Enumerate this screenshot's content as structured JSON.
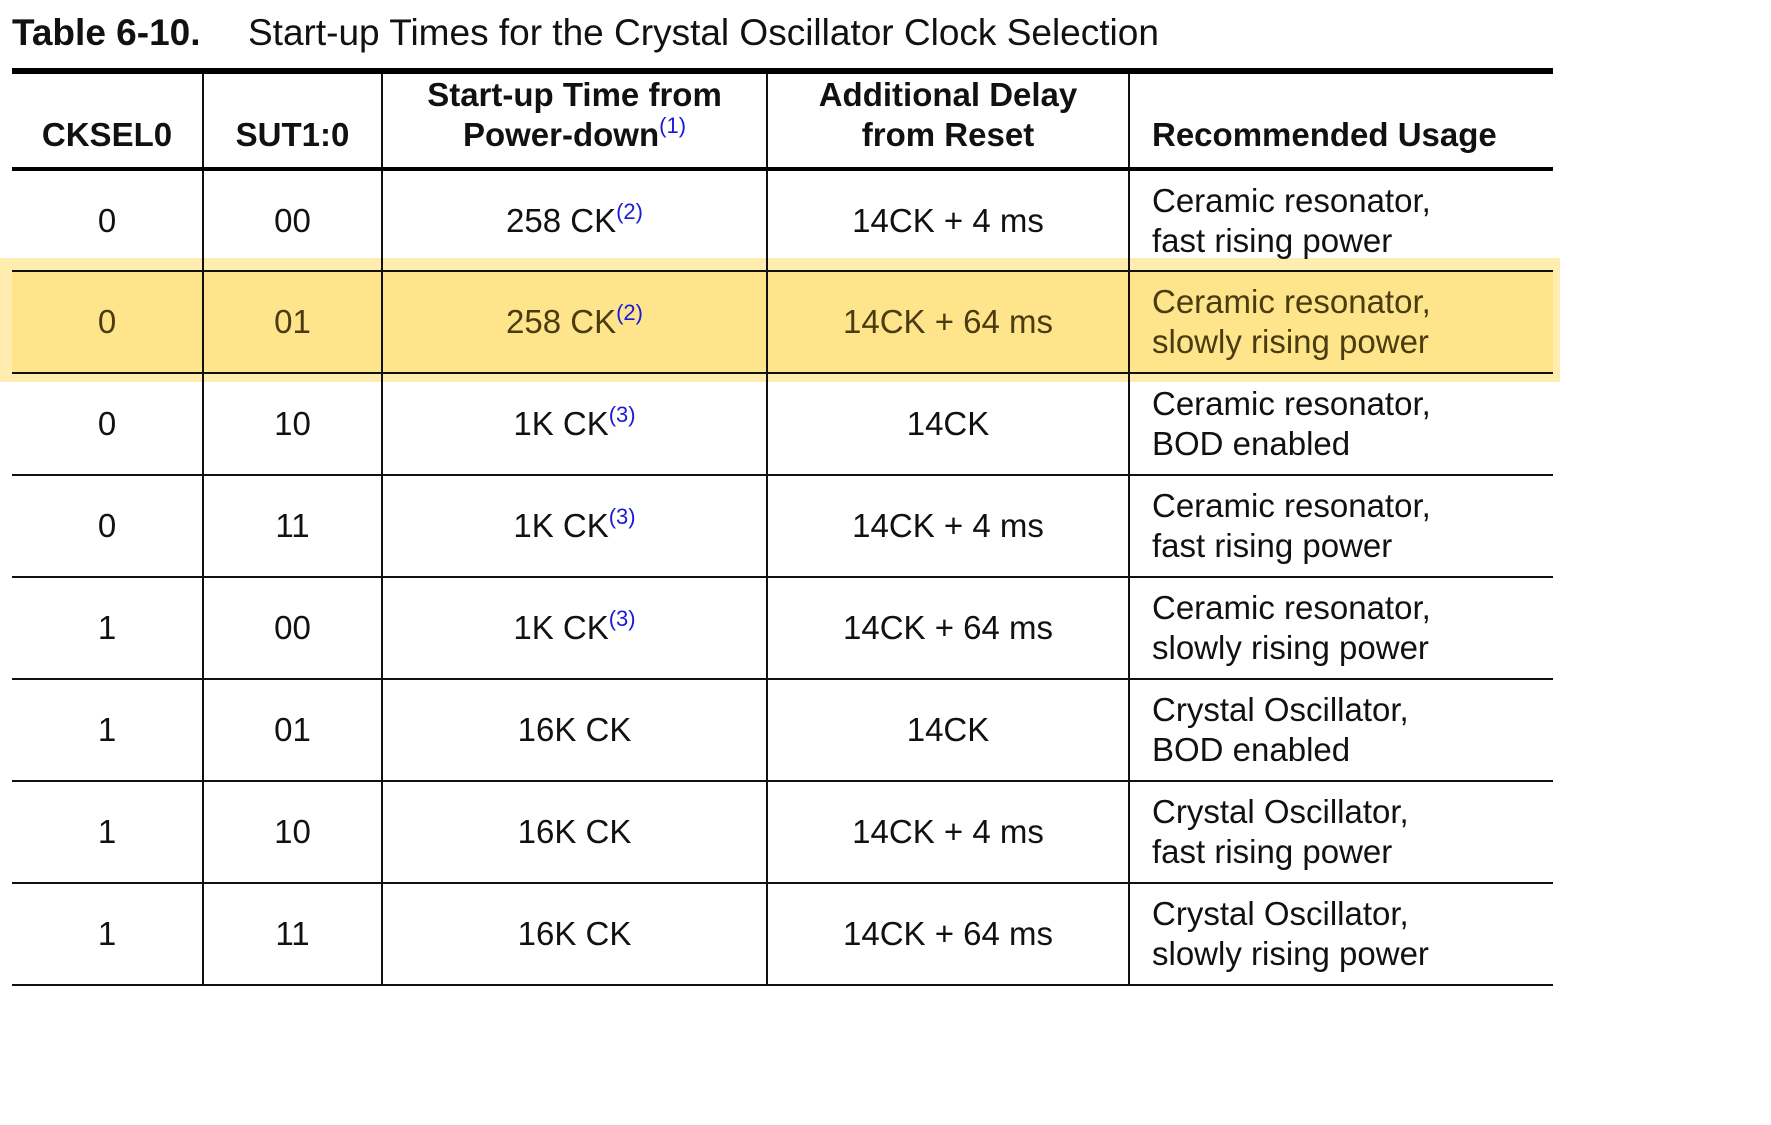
{
  "caption": {
    "number": "Table 6-10.",
    "title": "Start-up Times for the Crystal Oscillator Clock Selection"
  },
  "columns": {
    "cksel0": "CKSEL0",
    "sut": "SUT1:0",
    "startup_line1": "Start-up Time from",
    "startup_line2": "Power-down",
    "startup_note": "(1)",
    "delay_line1": "Additional Delay",
    "delay_line2": "from Reset",
    "usage": "Recommended Usage"
  },
  "rows": [
    {
      "cksel0": "0",
      "sut": "00",
      "startup": "258 CK",
      "note": "(2)",
      "delay": "14CK + 4 ms",
      "usage1": "Ceramic resonator,",
      "usage2": "fast rising power"
    },
    {
      "cksel0": "0",
      "sut": "01",
      "startup": "258 CK",
      "note": "(2)",
      "delay": "14CK + 64 ms",
      "usage1": "Ceramic resonator,",
      "usage2": "slowly rising power"
    },
    {
      "cksel0": "0",
      "sut": "10",
      "startup": "1K CK",
      "note": "(3)",
      "delay": "14CK",
      "usage1": "Ceramic resonator,",
      "usage2": "BOD enabled"
    },
    {
      "cksel0": "0",
      "sut": "11",
      "startup": "1K CK",
      "note": "(3)",
      "delay": "14CK + 4 ms",
      "usage1": "Ceramic resonator,",
      "usage2": "fast rising power"
    },
    {
      "cksel0": "1",
      "sut": "00",
      "startup": "1K CK",
      "note": "(3)",
      "delay": "14CK + 64 ms",
      "usage1": "Ceramic resonator,",
      "usage2": "slowly rising power"
    },
    {
      "cksel0": "1",
      "sut": "01",
      "startup": "16K CK",
      "note": "",
      "delay": "14CK",
      "usage1": "Crystal Oscillator,",
      "usage2": "BOD enabled"
    },
    {
      "cksel0": "1",
      "sut": "10",
      "startup": "16K CK",
      "note": "",
      "delay": "14CK + 4 ms",
      "usage1": "Crystal Oscillator,",
      "usage2": "fast rising power"
    },
    {
      "cksel0": "1",
      "sut": "11",
      "startup": "16K CK",
      "note": "",
      "delay": "14CK + 64 ms",
      "usage1": "Crystal Oscillator,",
      "usage2": "slowly rising power"
    }
  ],
  "highlighted_row": 1,
  "colors": {
    "highlight": "#fdde6e",
    "footnote_link": "#1a1adb"
  }
}
